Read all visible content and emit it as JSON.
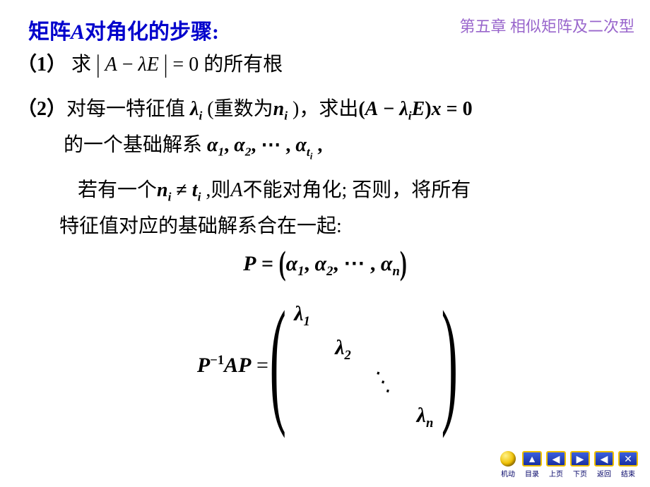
{
  "chapter": "第五章 相似矩阵及二次型",
  "title_pre": "矩阵",
  "title_var": "A",
  "title_post": "对角化的步骤:",
  "line1": {
    "label": "（1）",
    "verb": "求",
    "expr_A": "A",
    "expr_minus": " − ",
    "expr_lambda": "λ",
    "expr_E": "E",
    "eq_zero": " = 0",
    "tail": " 的所有根"
  },
  "line2": {
    "label": "（2）",
    "t1": "对每一特征值 ",
    "lam": "λ",
    "lam_sub": "i",
    "t2": " (重数为",
    "n": "n",
    "n_sub": "i",
    "t3": " )，求出",
    "lp": "(",
    "A": "A",
    "minus": " − ",
    "lam2": "λ",
    "lam2_sub": "i",
    "E": "E",
    "rp": ")",
    "x": "x",
    "eq": " = ",
    "zero": "0"
  },
  "line3": {
    "t1": "的一个基础解系 ",
    "a1": "α",
    "s1": "1",
    "c1": ", ",
    "a2": "α",
    "s2": "2",
    "c2": ", ⋯ , ",
    "a3": "α",
    "s3_t": "t",
    "s3_i": "i",
    "tail": " ,"
  },
  "line4": {
    "t1": "若有一个",
    "n": "n",
    "n_sub": "i",
    "neq": " ≠ ",
    "t": "t",
    "t_sub": "i",
    "t2": " ,则",
    "A": "A",
    "t3": "不能对角化; 否则，将所有"
  },
  "line5": "特征值对应的基础解系合在一起:",
  "peq": {
    "P": "P",
    "eq": " = ",
    "a1": "α",
    "s1": "1",
    "c1": ", ",
    "a2": "α",
    "s2": "2",
    "c2": ", ⋯ , ",
    "a3": "α",
    "s3": "n"
  },
  "matrix": {
    "left_P": "P",
    "left_sup": "−1",
    "left_A": "A",
    "left_P2": "P",
    "eq": " = ",
    "d1": "λ",
    "d1s": "1",
    "d2": "λ",
    "d2s": "2",
    "dots": "⋱",
    "d4": "λ",
    "d4s": "n"
  },
  "nav": {
    "items": [
      {
        "name": "nav-motor",
        "label": "机动",
        "kind": "sphere"
      },
      {
        "name": "nav-toc",
        "label": "目录",
        "kind": "home",
        "glyph": "▲"
      },
      {
        "name": "nav-prev",
        "label": "上页",
        "kind": "prev",
        "glyph": "◀"
      },
      {
        "name": "nav-next",
        "label": "下页",
        "kind": "next",
        "glyph": "▶"
      },
      {
        "name": "nav-back",
        "label": "返回",
        "kind": "back",
        "glyph": "◀"
      },
      {
        "name": "nav-end",
        "label": "结束",
        "kind": "close",
        "glyph": "✕"
      }
    ]
  },
  "colors": {
    "chapter": "#9966cc",
    "title": "#0000cc",
    "text": "#000000",
    "nav_btn": "#2a48c8",
    "nav_border": "#f0c000"
  }
}
